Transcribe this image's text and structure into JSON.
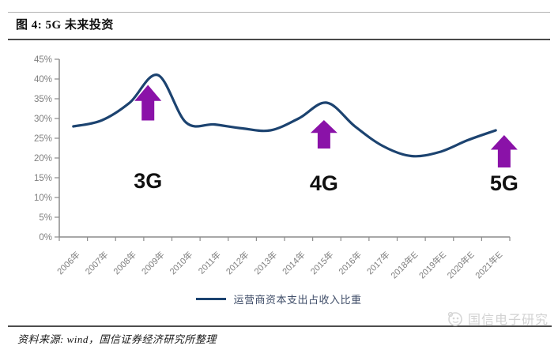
{
  "figure": {
    "title": "图 4: 5G 未来投资"
  },
  "chart_data": {
    "type": "line",
    "title": "5G 未来投资",
    "categories": [
      "2006年",
      "2007年",
      "2008年",
      "2009年",
      "2010年",
      "2011年",
      "2012年",
      "2013年",
      "2014年",
      "2015年",
      "2016年",
      "2017年",
      "2018年E",
      "2019年E",
      "2020年E",
      "2021年E"
    ],
    "series": [
      {
        "name": "运营商资本支出占收入比重",
        "values": [
          28,
          29.5,
          34,
          41,
          29,
          28.5,
          27.5,
          27,
          30,
          34,
          28,
          23,
          20.5,
          21.5,
          24.5,
          27
        ]
      }
    ],
    "xlabel": "",
    "ylabel": "",
    "ylim": [
      0,
      45
    ],
    "ytick_step": 5,
    "ytick_labels": [
      "45%",
      "40%",
      "35%",
      "30%",
      "25%",
      "20%",
      "15%",
      "10%",
      "5%",
      "0%"
    ],
    "grid": false,
    "legend_position": "bottom",
    "line_color": "#1C4370",
    "arrow_color": "#8A12A8",
    "axis_color": "#8C8C8C",
    "tick_label_color": "#7F7F7F",
    "annotations": [
      {
        "label": "3G",
        "x": 3.15,
        "arrow_tip_pct": 38.5,
        "arrow_base_pct": 29.5,
        "label_pct": 14.2
      },
      {
        "label": "4G",
        "x": 9.4,
        "arrow_tip_pct": 29.6,
        "arrow_base_pct": 22.4,
        "label_pct": 13.6
      },
      {
        "label": "5G",
        "x": 15.8,
        "arrow_tip_pct": 25.8,
        "arrow_base_pct": 17.6,
        "label_pct": 13.6
      }
    ]
  },
  "footer": {
    "source": "资料来源: wind，国信证券经济研究所整理",
    "watermark": "国信电子研究"
  }
}
